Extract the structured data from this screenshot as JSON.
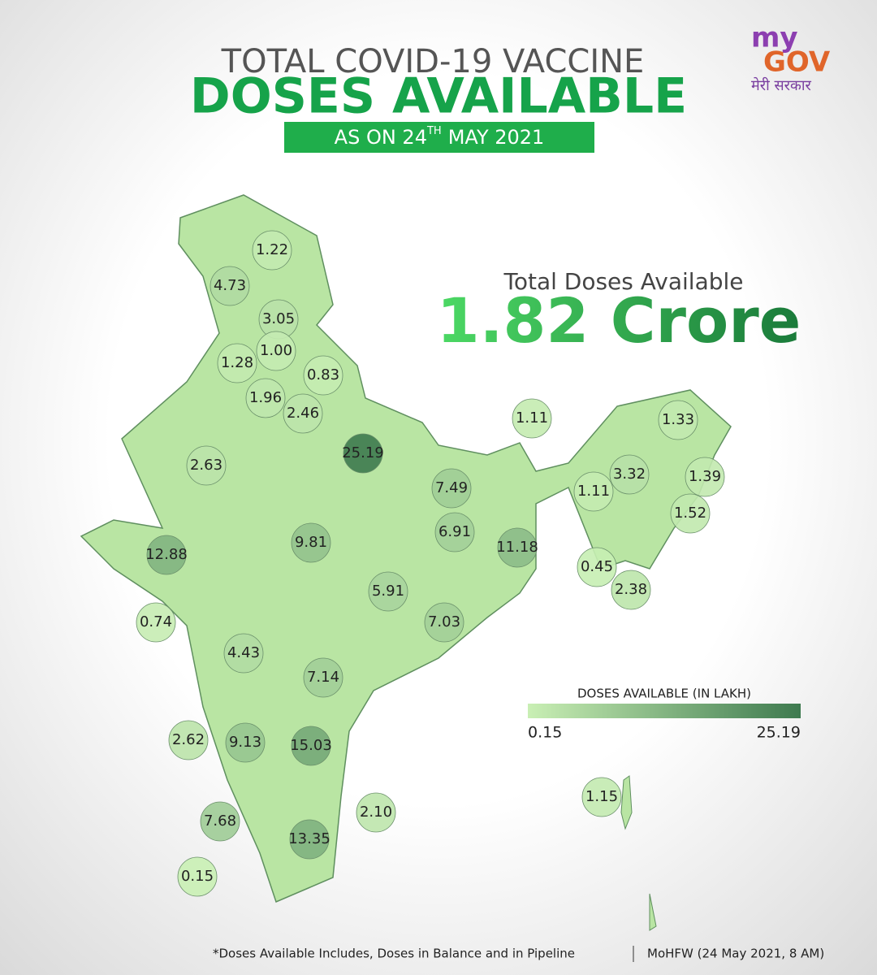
{
  "header": {
    "title_line1": "TOTAL COVID-19 VACCINE",
    "title_line2": "DOSES AVAILABLE",
    "date_prefix": "AS ON 24",
    "date_sup": "TH",
    "date_suffix": "MAY 2021"
  },
  "logo": {
    "my": "my",
    "gov": "GOV",
    "hindi": "मेरी सरकार"
  },
  "total": {
    "label": "Total Doses Available",
    "value": "1.82 Crore"
  },
  "map_data": {
    "type": "choropleth",
    "values": [
      1.22,
      4.73,
      3.05,
      1.28,
      1.0,
      0.83,
      1.96,
      2.46,
      25.19,
      2.63,
      1.11,
      1.33,
      3.32,
      1.39,
      1.11,
      1.52,
      7.49,
      12.88,
      9.81,
      6.91,
      11.18,
      0.45,
      2.38,
      5.91,
      0.74,
      7.03,
      4.43,
      7.14,
      2.62,
      9.13,
      15.03,
      2.1,
      1.15,
      7.68,
      13.35,
      0.15
    ],
    "value_labels": [
      "1.22",
      "4.73",
      "3.05",
      "1.28",
      "1.00",
      "0.83",
      "1.96",
      "2.46",
      "25.19",
      "2.63",
      "1.11",
      "1.33",
      "3.32",
      "1.39",
      "1.11",
      "1.52",
      "7.49",
      "12.88",
      "9.81",
      "6.91",
      "11.18",
      "0.45",
      "2.38",
      "5.91",
      "0.74",
      "7.03",
      "4.43",
      "7.14",
      "2.62",
      "9.13",
      "15.03",
      "2.10",
      "1.15",
      "7.68",
      "13.35",
      "0.15"
    ],
    "legend": {
      "title": "DOSES AVAILABLE (IN LAKH)",
      "min": 0.15,
      "max": 25.19,
      "color_low": "#c9efb4",
      "color_high": "#3e7a4f"
    }
  },
  "footer": {
    "note": "*Doses Available Includes, Doses in Balance and in Pipeline",
    "source": "MoHFW (24 May 2021, 8 AM)"
  }
}
